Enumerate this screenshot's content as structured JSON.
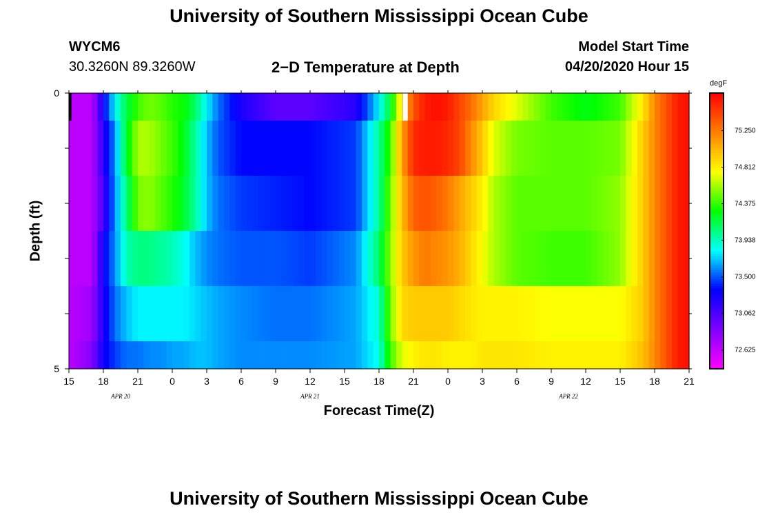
{
  "page": {
    "title_top": "University of Southern Mississippi Ocean Cube",
    "title_bottom": "University of Southern Mississippi Ocean Cube",
    "station_id": "WYCM6",
    "station_coords": "30.3260N 89.3260W",
    "plot_title": "2−D Temperature at Depth",
    "model_start_label": "Model Start Time",
    "model_start_value": "04/20/2020 Hour 15"
  },
  "chart_data": {
    "type": "heatmap",
    "title": "2−D Temperature at Depth",
    "xlabel": "Forecast Time(Z)",
    "ylabel": "Depth (ft)",
    "y_tick_labels": [
      "0",
      "5"
    ],
    "ylim": [
      0,
      5
    ],
    "x_tick_labels": [
      "15",
      "18",
      "21",
      "0",
      "3",
      "6",
      "9",
      "12",
      "15",
      "18",
      "21",
      "0",
      "3",
      "6",
      "9",
      "12",
      "15",
      "18",
      "21"
    ],
    "date_labels": [
      {
        "text": "APR  20",
        "tick": 1.5
      },
      {
        "text": "APR  21",
        "tick": 7
      },
      {
        "text": "APR  22",
        "tick": 14.5
      }
    ],
    "colorbar": {
      "unit": "degF",
      "min": 72.4,
      "max": 75.7,
      "tick_labels": [
        "75.250",
        "74.812",
        "74.375",
        "73.938",
        "73.500",
        "73.062",
        "72.625"
      ],
      "tick_values": [
        75.25,
        74.8125,
        74.375,
        73.9375,
        73.5,
        73.0625,
        72.625
      ],
      "colors": [
        "#ff00ff",
        "#7f00ff",
        "#0000ff",
        "#00ffff",
        "#00ff00",
        "#ffff00",
        "#ff8000",
        "#ff0000"
      ]
    },
    "grid": false,
    "time_start_hour": 15,
    "time_end_hour": 69,
    "depth_layers_ft": [
      0,
      0.5,
      1.5,
      2.5,
      3.5,
      4.5
    ],
    "anchors_hours": [
      15,
      17,
      18,
      19,
      20,
      21,
      22,
      23,
      24,
      25,
      26,
      27,
      28,
      30,
      33,
      36,
      40,
      42,
      43,
      44,
      45,
      46,
      47,
      48,
      49,
      50,
      51,
      52,
      54,
      57,
      60,
      63,
      65,
      66,
      67,
      68,
      69
    ],
    "temperature_degF": [
      [
        72.65,
        72.65,
        73.3,
        73.8,
        74.15,
        74.4,
        74.5,
        74.45,
        74.35,
        74.3,
        74.1,
        73.8,
        73.55,
        73.25,
        73.0,
        73.0,
        73.2,
        73.8,
        74.2,
        74.9,
        75.4,
        75.6,
        75.65,
        75.6,
        75.45,
        75.3,
        75.1,
        74.9,
        74.7,
        74.4,
        74.25,
        74.4,
        74.85,
        75.2,
        75.4,
        75.6,
        75.65
      ],
      [
        72.65,
        72.65,
        73.2,
        73.6,
        74.2,
        74.6,
        74.6,
        74.5,
        74.4,
        74.25,
        74.0,
        73.7,
        73.5,
        73.35,
        73.35,
        73.35,
        73.45,
        74.0,
        74.4,
        75.1,
        75.55,
        75.6,
        75.6,
        75.55,
        75.45,
        75.2,
        74.95,
        74.7,
        74.5,
        74.45,
        74.45,
        74.5,
        74.95,
        75.2,
        75.4,
        75.6,
        75.65
      ],
      [
        72.65,
        72.65,
        73.1,
        73.6,
        74.05,
        74.5,
        74.55,
        74.45,
        74.35,
        74.2,
        74.0,
        73.7,
        73.55,
        73.45,
        73.4,
        73.35,
        73.45,
        74.0,
        74.5,
        75.0,
        75.35,
        75.4,
        75.35,
        75.25,
        75.1,
        74.95,
        74.8,
        74.6,
        74.45,
        74.45,
        74.45,
        74.55,
        74.95,
        75.2,
        75.4,
        75.6,
        75.65
      ],
      [
        72.65,
        72.65,
        73.3,
        73.6,
        73.95,
        74.05,
        74.05,
        74.0,
        73.95,
        73.85,
        73.7,
        73.6,
        73.55,
        73.5,
        73.5,
        73.45,
        73.6,
        74.1,
        74.55,
        74.95,
        75.15,
        75.25,
        75.2,
        75.15,
        75.05,
        74.9,
        74.75,
        74.6,
        74.45,
        74.4,
        74.4,
        74.55,
        74.95,
        75.2,
        75.4,
        75.6,
        75.65
      ],
      [
        72.65,
        72.75,
        73.25,
        73.55,
        73.7,
        73.8,
        73.8,
        73.8,
        73.8,
        73.8,
        73.75,
        73.7,
        73.65,
        73.6,
        73.55,
        73.55,
        73.65,
        73.9,
        74.5,
        74.9,
        74.95,
        74.95,
        74.95,
        74.95,
        74.9,
        74.85,
        74.8,
        74.8,
        74.8,
        74.75,
        74.75,
        74.75,
        74.95,
        75.2,
        75.4,
        75.6,
        75.65
      ],
      [
        72.65,
        72.85,
        73.3,
        73.45,
        73.55,
        73.55,
        73.6,
        73.6,
        73.65,
        73.65,
        73.7,
        73.7,
        73.65,
        73.6,
        73.6,
        73.6,
        73.65,
        73.85,
        74.4,
        74.7,
        74.8,
        74.85,
        74.85,
        74.8,
        74.8,
        74.8,
        74.85,
        74.85,
        74.85,
        74.8,
        74.8,
        74.8,
        75.0,
        75.2,
        75.4,
        75.6,
        75.65
      ]
    ],
    "missing_markers": [
      {
        "hour": 15.1,
        "depth_ft": 0,
        "color": "#000000"
      },
      {
        "hour": 44.2,
        "depth_ft": 0,
        "color": "#ffffff"
      }
    ]
  }
}
